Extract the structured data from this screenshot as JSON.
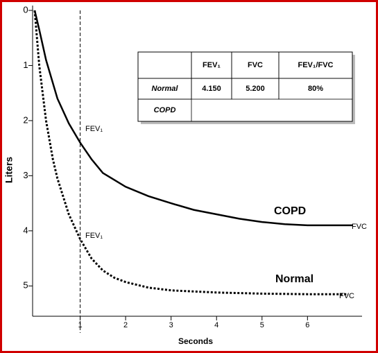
{
  "chart_data": {
    "type": "line",
    "x_label": "Seconds",
    "y_label": "Liters",
    "xlim": [
      0,
      7.2
    ],
    "ylim": [
      0,
      5.55
    ],
    "y_inverted": true,
    "xticks": [
      1,
      2,
      3,
      4,
      5,
      6
    ],
    "yticks": [
      0,
      1,
      2,
      3,
      4,
      5
    ],
    "grid": false,
    "reference_line": {
      "x": 1
    },
    "series": [
      {
        "name": "COPD",
        "color": "#000000",
        "line_style": "solid",
        "x": [
          0,
          0.1,
          0.25,
          0.5,
          0.75,
          1,
          1.25,
          1.5,
          2,
          2.5,
          3,
          3.5,
          4,
          4.5,
          5,
          5.5,
          6,
          7
        ],
        "values": [
          0,
          0.35,
          0.9,
          1.6,
          2.05,
          2.4,
          2.7,
          2.95,
          3.2,
          3.37,
          3.5,
          3.62,
          3.7,
          3.78,
          3.84,
          3.88,
          3.9,
          3.9
        ]
      },
      {
        "name": "Normal",
        "color": "#000000",
        "line_style": "dotted",
        "x": [
          0,
          0.1,
          0.25,
          0.4,
          0.5,
          0.75,
          1,
          1.25,
          1.5,
          1.75,
          2,
          2.5,
          3,
          4,
          5,
          6,
          6.9
        ],
        "values": [
          0,
          1.0,
          2.0,
          2.7,
          3.05,
          3.7,
          4.15,
          4.5,
          4.72,
          4.85,
          4.93,
          5.03,
          5.08,
          5.12,
          5.14,
          5.15,
          5.15
        ]
      }
    ],
    "annotations": [
      "FEV₁",
      "FEV₁",
      "FVC",
      "FVC"
    ],
    "table": {
      "header": [
        "",
        "FEV₁",
        "FVC",
        "FEV₁/FVC"
      ],
      "rows": [
        [
          "Normal",
          "4.150",
          "5.200",
          "80%"
        ],
        [
          "COPD"
        ]
      ]
    }
  }
}
